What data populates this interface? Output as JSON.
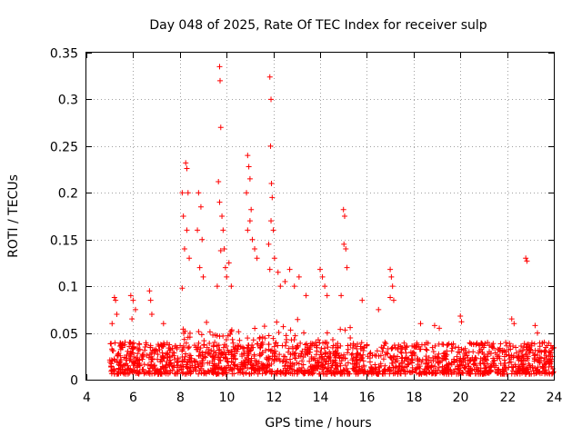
{
  "chart_data": {
    "type": "scatter",
    "title": "Day 048 of 2025, Rate Of TEC Index for receiver sulp",
    "xlabel": "GPS time / hours",
    "ylabel": "ROTI / TECUs",
    "xlim": [
      4,
      24
    ],
    "ylim": [
      0,
      0.35
    ],
    "xticks": [
      "4",
      "6",
      "8",
      "10",
      "12",
      "14",
      "16",
      "18",
      "20",
      "22",
      "24"
    ],
    "yticks": [
      "0",
      "0.05",
      "0.1",
      "0.15",
      "0.2",
      "0.25",
      "0.3",
      "0.35"
    ],
    "grid": true,
    "marker": "plus",
    "series": [
      {
        "name": "ROTI",
        "color": "#ff0000",
        "description_of_density": "dense band 0.005-0.04 from 5h to 24h",
        "points": [
          [
            5.2,
            0.088
          ],
          [
            5.25,
            0.085
          ],
          [
            5.3,
            0.07
          ],
          [
            5.1,
            0.06
          ],
          [
            5.9,
            0.09
          ],
          [
            6.0,
            0.085
          ],
          [
            6.1,
            0.075
          ],
          [
            5.95,
            0.065
          ],
          [
            6.7,
            0.095
          ],
          [
            6.75,
            0.085
          ],
          [
            6.8,
            0.07
          ],
          [
            7.3,
            0.06
          ],
          [
            8.1,
            0.2
          ],
          [
            8.15,
            0.175
          ],
          [
            8.25,
            0.232
          ],
          [
            8.3,
            0.226
          ],
          [
            8.35,
            0.2
          ],
          [
            8.2,
            0.14
          ],
          [
            8.3,
            0.16
          ],
          [
            8.1,
            0.098
          ],
          [
            8.4,
            0.13
          ],
          [
            8.8,
            0.2
          ],
          [
            8.9,
            0.185
          ],
          [
            8.75,
            0.16
          ],
          [
            8.95,
            0.15
          ],
          [
            8.85,
            0.12
          ],
          [
            9.0,
            0.11
          ],
          [
            9.7,
            0.335
          ],
          [
            9.72,
            0.32
          ],
          [
            9.75,
            0.27
          ],
          [
            9.65,
            0.212
          ],
          [
            9.7,
            0.19
          ],
          [
            9.8,
            0.175
          ],
          [
            9.85,
            0.16
          ],
          [
            9.9,
            0.14
          ],
          [
            9.75,
            0.138
          ],
          [
            9.95,
            0.12
          ],
          [
            9.6,
            0.1
          ],
          [
            10.0,
            0.11
          ],
          [
            10.1,
            0.125
          ],
          [
            10.2,
            0.1
          ],
          [
            10.9,
            0.24
          ],
          [
            10.95,
            0.228
          ],
          [
            11.0,
            0.215
          ],
          [
            10.85,
            0.2
          ],
          [
            11.05,
            0.182
          ],
          [
            11.0,
            0.17
          ],
          [
            10.9,
            0.16
          ],
          [
            11.1,
            0.15
          ],
          [
            11.2,
            0.14
          ],
          [
            11.3,
            0.13
          ],
          [
            11.85,
            0.324
          ],
          [
            11.9,
            0.3
          ],
          [
            11.88,
            0.25
          ],
          [
            11.92,
            0.21
          ],
          [
            11.95,
            0.195
          ],
          [
            11.9,
            0.17
          ],
          [
            12.0,
            0.16
          ],
          [
            11.8,
            0.145
          ],
          [
            12.05,
            0.13
          ],
          [
            11.85,
            0.118
          ],
          [
            12.2,
            0.115
          ],
          [
            12.3,
            0.1
          ],
          [
            12.5,
            0.105
          ],
          [
            12.7,
            0.118
          ],
          [
            12.9,
            0.1
          ],
          [
            13.1,
            0.11
          ],
          [
            13.4,
            0.09
          ],
          [
            14.0,
            0.118
          ],
          [
            14.1,
            0.11
          ],
          [
            14.2,
            0.1
          ],
          [
            14.3,
            0.09
          ],
          [
            15.0,
            0.182
          ],
          [
            15.05,
            0.175
          ],
          [
            15.02,
            0.145
          ],
          [
            15.1,
            0.14
          ],
          [
            15.15,
            0.12
          ],
          [
            14.9,
            0.09
          ],
          [
            15.8,
            0.085
          ],
          [
            16.5,
            0.075
          ],
          [
            17.0,
            0.118
          ],
          [
            17.05,
            0.11
          ],
          [
            17.1,
            0.1
          ],
          [
            17.0,
            0.088
          ],
          [
            17.15,
            0.085
          ],
          [
            18.3,
            0.06
          ],
          [
            18.9,
            0.058
          ],
          [
            19.1,
            0.055
          ],
          [
            20.0,
            0.068
          ],
          [
            20.05,
            0.062
          ],
          [
            22.2,
            0.065
          ],
          [
            22.3,
            0.06
          ],
          [
            22.8,
            0.13
          ],
          [
            22.85,
            0.127
          ],
          [
            23.2,
            0.058
          ],
          [
            23.3,
            0.05
          ]
        ]
      }
    ]
  }
}
